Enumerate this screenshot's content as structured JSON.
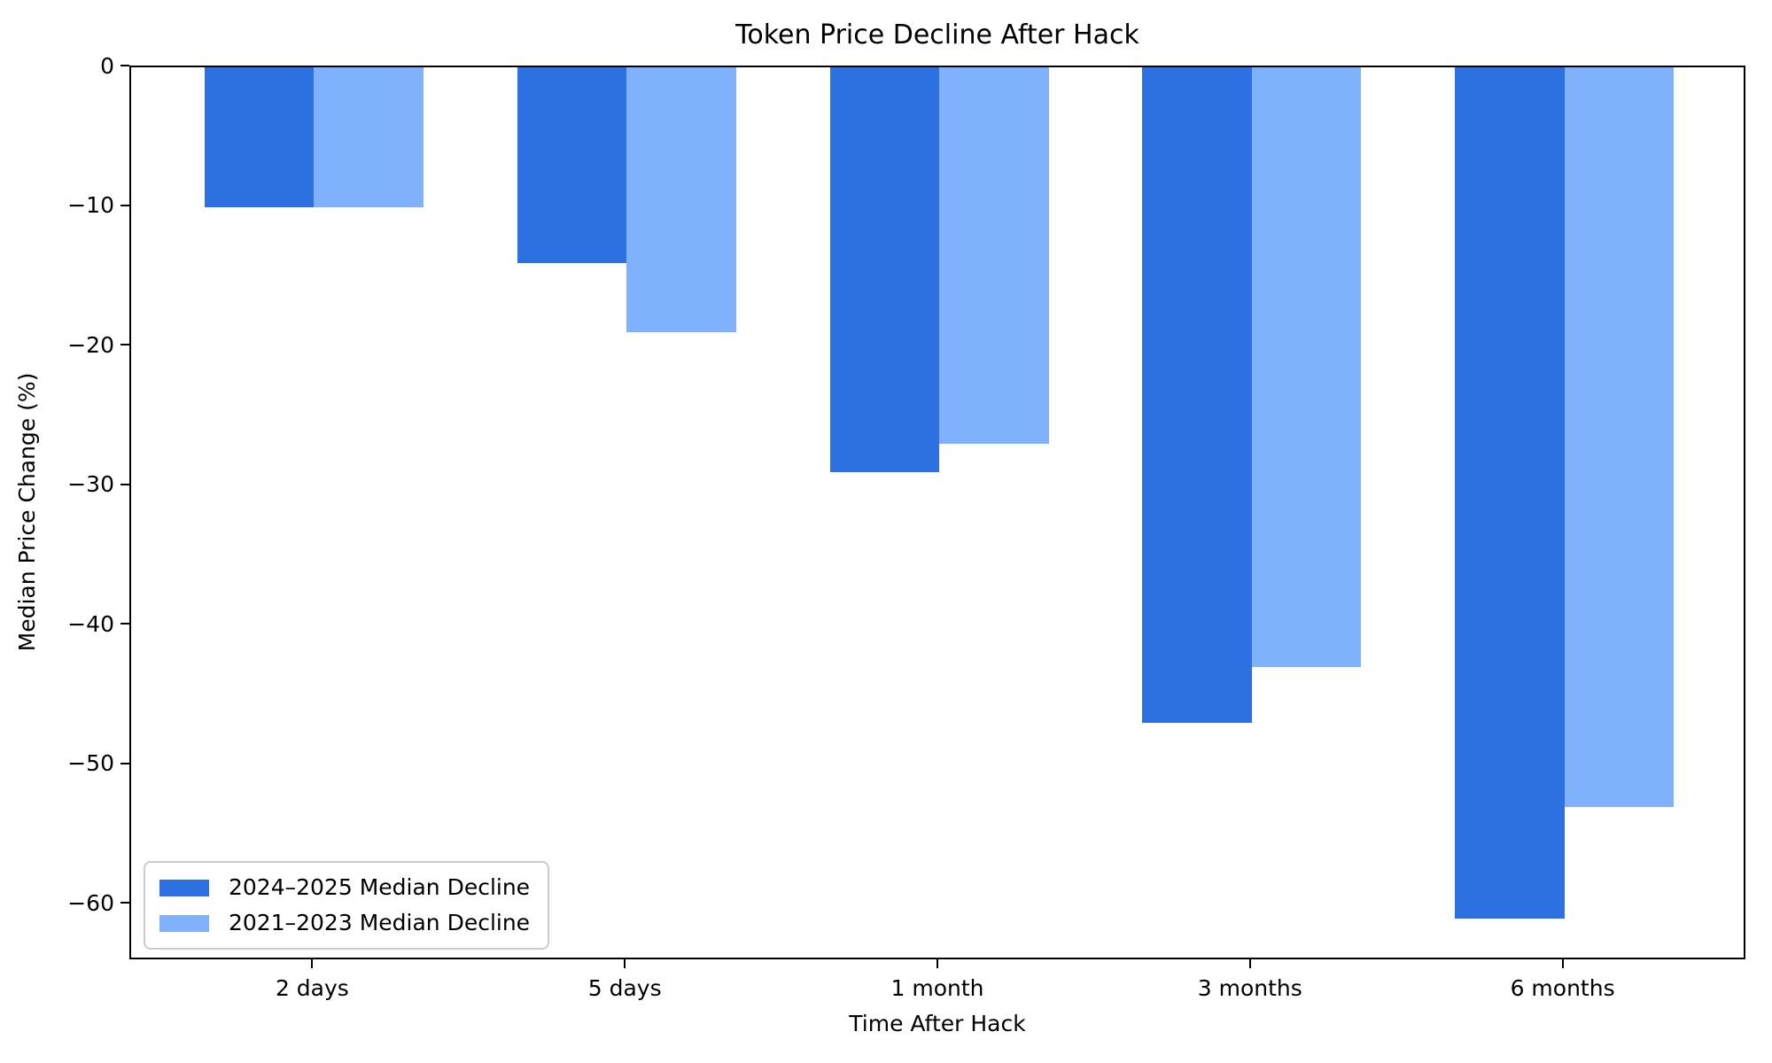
{
  "chart_data": {
    "type": "bar",
    "title": "Token Price Decline After Hack",
    "xlabel": "Time After Hack",
    "ylabel": "Median Price Change (%)",
    "categories": [
      "2 days",
      "5 days",
      "1 month",
      "3 months",
      "6 months"
    ],
    "series": [
      {
        "name": "2024–2025 Median Decline",
        "color": "#2D70E2",
        "values": [
          -10,
          -14,
          -29,
          -47,
          -61
        ]
      },
      {
        "name": "2021–2023 Median Decline",
        "color": "#80B1FC",
        "values": [
          -10,
          -19,
          -27,
          -43,
          -53
        ]
      }
    ],
    "yticks": [
      0,
      -10,
      -20,
      -30,
      -40,
      -50,
      -60
    ],
    "ytick_labels": [
      "0",
      "−10",
      "−20",
      "−30",
      "−40",
      "−50",
      "−60"
    ],
    "ylim": [
      -64.05,
      0
    ],
    "grid": false,
    "legend_position": "lower left",
    "background_color": "#ffffff",
    "text_color": "#000000",
    "legend_border_color": "#cccccc"
  }
}
